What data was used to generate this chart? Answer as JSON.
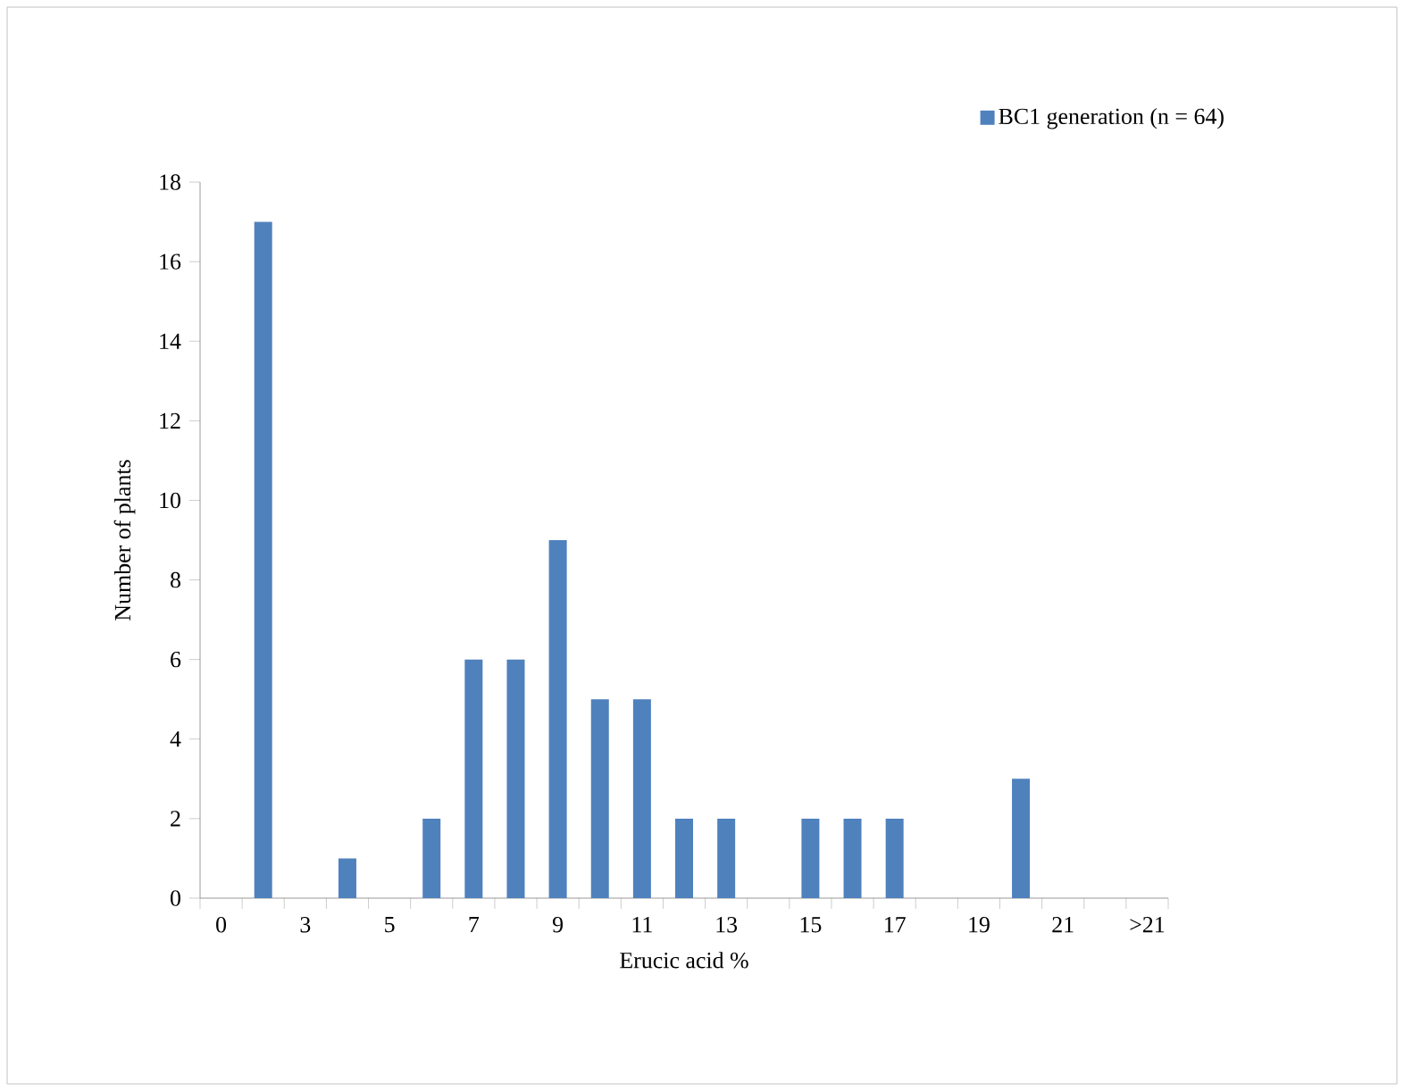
{
  "chart_data": {
    "type": "bar",
    "xlabel": "Erucic acid %",
    "ylabel": "Number of plants",
    "categories": [
      "0",
      null,
      "3",
      null,
      "5",
      null,
      "7",
      null,
      "9",
      null,
      "11",
      null,
      "13",
      null,
      "15",
      null,
      "17",
      null,
      "19",
      null,
      "21",
      null,
      ">21"
    ],
    "series": [
      {
        "name": "BC1 generation (n = 64)",
        "color": "#4f81bd",
        "values": [
          0,
          17,
          0,
          1,
          0,
          2,
          6,
          6,
          9,
          5,
          5,
          2,
          2,
          0,
          2,
          2,
          2,
          0,
          0,
          3,
          0,
          0,
          0
        ]
      }
    ],
    "ylim": [
      0,
      18
    ],
    "yticks": [
      0,
      2,
      4,
      6,
      8,
      10,
      12,
      14,
      16,
      18
    ],
    "grid": false,
    "legend": "top right"
  }
}
